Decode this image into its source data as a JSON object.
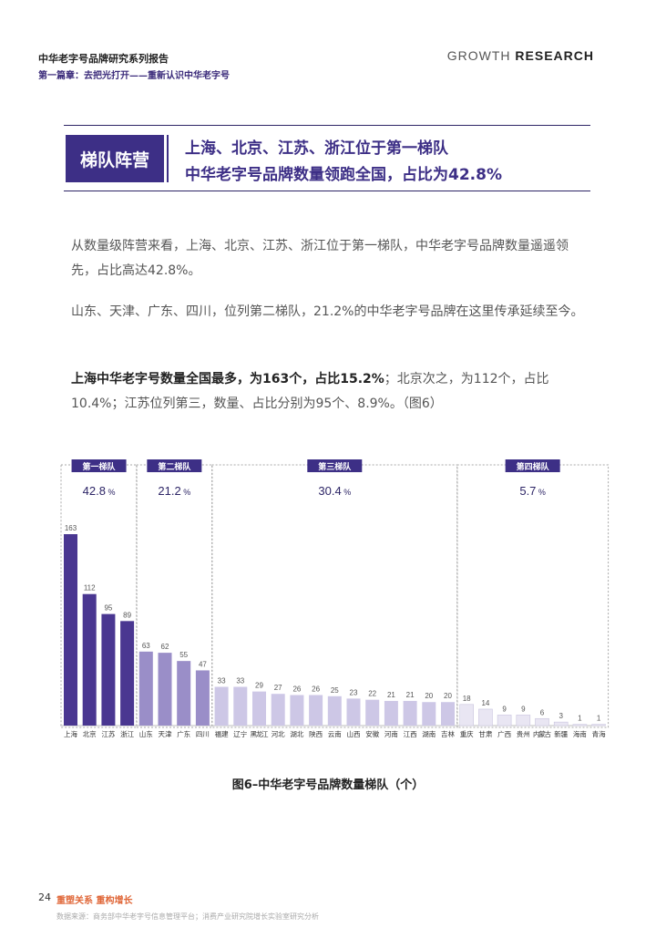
{
  "header": {
    "report_title": "中华老字号品牌研究系列报告",
    "chapter": "第一篇章：去把光打开——重新认识中华老字号",
    "brand_prefix": "GROWTH",
    "brand_main": "RESEARCH"
  },
  "section": {
    "badge": "梯队阵营",
    "headline_1": "上海、北京、江苏、浙江位于第一梯队",
    "headline_2": "中华老字号品牌数量领跑全国，占比为42.8%"
  },
  "body": {
    "para_1": "从数量级阵营来看，上海、北京、江苏、浙江位于第一梯队，中华老字号品牌数量遥遥领先，占比高达42.8%。",
    "para_2": "山东、天津、广东、四川，位列第二梯队，21.2%的中华老字号品牌在这里传承延续至今。",
    "para_3_bold": "上海中华老字号数量全国最多，为163个，占比15.2%",
    "para_3_rest": "；北京次之，为112个，占比10.4%；江苏位列第三，数量、占比分别为95个、8.9%。（图6）"
  },
  "chart_data": {
    "type": "bar",
    "categories": [
      "上海",
      "北京",
      "江苏",
      "浙江",
      "山东",
      "天津",
      "广东",
      "四川",
      "福建",
      "辽宁",
      "黑龙江",
      "河北",
      "湖北",
      "陕西",
      "云南",
      "山西",
      "安徽",
      "河南",
      "江西",
      "湖南",
      "吉林",
      "重庆",
      "甘肃",
      "广西",
      "贵州",
      "内蒙古",
      "新疆",
      "海南",
      "青海"
    ],
    "values": [
      163,
      112,
      95,
      89,
      63,
      62,
      55,
      47,
      33,
      33,
      29,
      27,
      26,
      26,
      25,
      23,
      22,
      21,
      21,
      20,
      20,
      18,
      14,
      9,
      9,
      6,
      3,
      1,
      1
    ],
    "tiers": [
      {
        "label": "第一梯队",
        "share": "42.8",
        "unit": "%",
        "start": 0,
        "end": 3,
        "color": "#4a3791"
      },
      {
        "label": "第二梯队",
        "share": "21.2",
        "unit": "%",
        "start": 4,
        "end": 7,
        "color": "#9a8ec8"
      },
      {
        "label": "第三梯队",
        "share": "30.4",
        "unit": "%",
        "start": 8,
        "end": 20,
        "color": "#cdc7e6"
      },
      {
        "label": "第四梯队",
        "share": "5.7",
        "unit": "%",
        "start": 21,
        "end": 28,
        "color": "#e9e6f3"
      }
    ],
    "ylim": [
      0,
      170
    ],
    "grid": false
  },
  "caption": "图6–中华老字号品牌数量梯队（个）",
  "footer": {
    "page_number": "24",
    "slogan": "重塑关系 重构增长",
    "source": "数据来源：商务部中华老字号信息管理平台；消费产业研究院增长实验室研究分析"
  }
}
